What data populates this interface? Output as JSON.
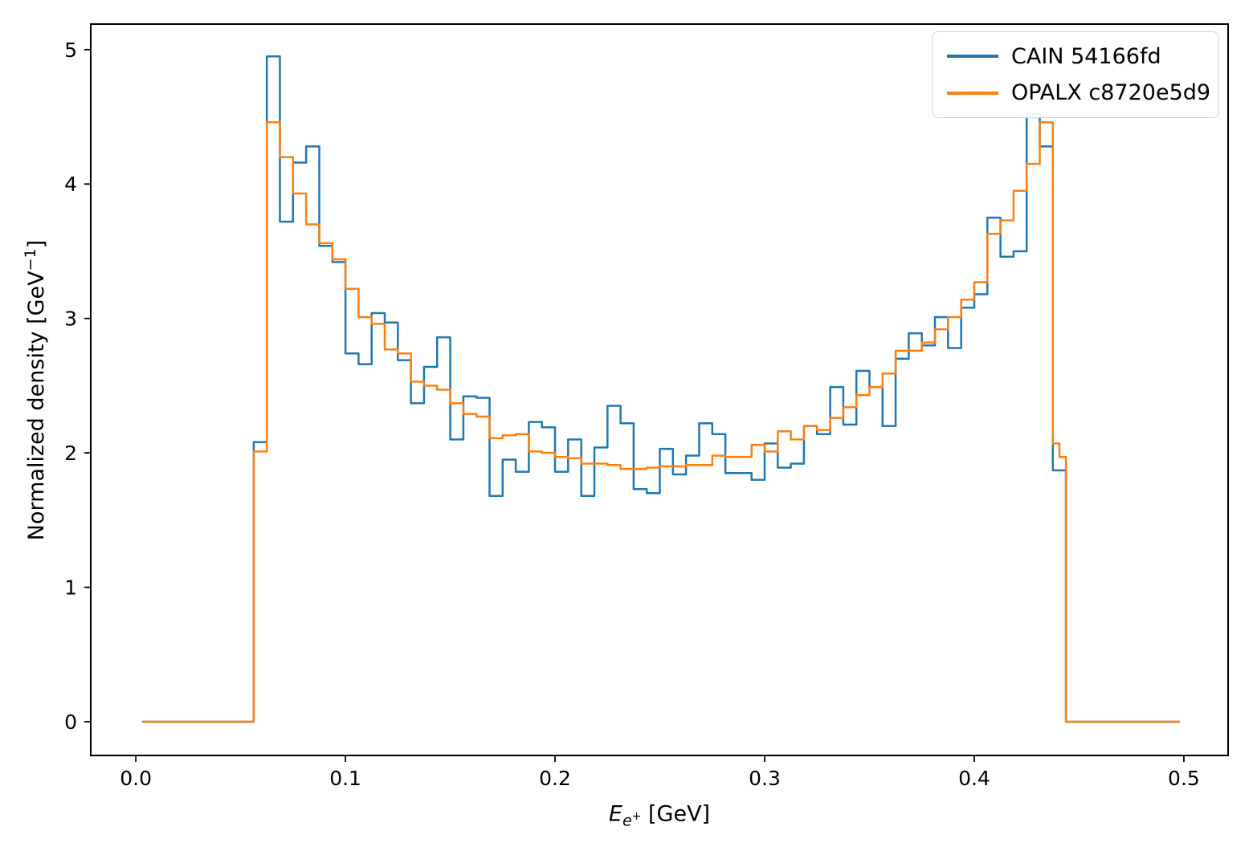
{
  "chart_data": {
    "type": "step-histogram",
    "title": "",
    "xlabel": {
      "var": "E",
      "sub": "e",
      "sub_sup": "+",
      "unit": " [GeV]"
    },
    "ylabel": {
      "main": "Normalized density [GeV",
      "sup": "−1",
      "end": "]"
    },
    "xlim": [
      -0.0215,
      0.5211
    ],
    "ylim": [
      -0.251,
      5.19
    ],
    "x_ticks": [
      0.0,
      0.1,
      0.2,
      0.3,
      0.4,
      0.5
    ],
    "x_tick_labels": [
      "0.0",
      "0.1",
      "0.2",
      "0.3",
      "0.4",
      "0.5"
    ],
    "y_ticks": [
      0,
      1,
      2,
      3,
      4,
      5
    ],
    "y_tick_labels": [
      "0",
      "1",
      "2",
      "3",
      "4",
      "5"
    ],
    "grid": false,
    "legend_position": "upper right",
    "series": [
      {
        "name": "CAIN 54166fd",
        "color": "#1f77b4",
        "baseline_start": 0.003,
        "baseline_end": 0.498,
        "bin_edges": [
          0.05625,
          0.0625,
          0.06875,
          0.075,
          0.08125,
          0.0875,
          0.09375,
          0.1,
          0.10625,
          0.1125,
          0.11875,
          0.125,
          0.13125,
          0.1375,
          0.14375,
          0.15,
          0.15625,
          0.1625,
          0.16875,
          0.175,
          0.18125,
          0.1875,
          0.19375,
          0.2,
          0.20625,
          0.2125,
          0.21875,
          0.225,
          0.23125,
          0.2375,
          0.24375,
          0.25,
          0.25625,
          0.2625,
          0.26875,
          0.275,
          0.28125,
          0.2875,
          0.29375,
          0.3,
          0.30625,
          0.3125,
          0.31875,
          0.325,
          0.33125,
          0.3375,
          0.34375,
          0.35,
          0.35625,
          0.3625,
          0.36875,
          0.375,
          0.38125,
          0.3875,
          0.39375,
          0.4,
          0.40625,
          0.4125,
          0.41875,
          0.425,
          0.43125,
          0.4375,
          0.44375
        ],
        "values": [
          2.08,
          4.95,
          3.72,
          4.16,
          4.28,
          3.54,
          3.42,
          2.74,
          2.66,
          3.04,
          2.97,
          2.69,
          2.37,
          2.64,
          2.86,
          2.1,
          2.42,
          2.41,
          1.68,
          1.95,
          1.86,
          2.23,
          2.19,
          1.86,
          2.1,
          1.68,
          2.04,
          2.35,
          2.22,
          1.73,
          1.7,
          2.03,
          1.84,
          1.98,
          2.22,
          2.14,
          1.85,
          1.85,
          1.8,
          2.07,
          1.89,
          1.92,
          2.2,
          2.14,
          2.49,
          2.21,
          2.61,
          2.49,
          2.2,
          2.7,
          2.89,
          2.8,
          3.01,
          2.78,
          3.08,
          3.18,
          3.75,
          3.46,
          3.5,
          4.52,
          4.28,
          1.87
        ]
      },
      {
        "name": "OPALX c8720e5d9",
        "color": "#ff7f0e",
        "baseline_start": 0.003,
        "baseline_end": 0.498,
        "bin_edges": [
          0.05625,
          0.0625,
          0.06875,
          0.075,
          0.08125,
          0.0875,
          0.09375,
          0.1,
          0.10625,
          0.1125,
          0.11875,
          0.125,
          0.13125,
          0.1375,
          0.14375,
          0.15,
          0.15625,
          0.1625,
          0.16875,
          0.175,
          0.18125,
          0.1875,
          0.19375,
          0.2,
          0.20625,
          0.2125,
          0.21875,
          0.225,
          0.23125,
          0.2375,
          0.24375,
          0.25,
          0.25625,
          0.2625,
          0.26875,
          0.275,
          0.28125,
          0.2875,
          0.29375,
          0.3,
          0.30625,
          0.3125,
          0.31875,
          0.325,
          0.33125,
          0.3375,
          0.34375,
          0.35,
          0.35625,
          0.3625,
          0.36875,
          0.375,
          0.38125,
          0.3875,
          0.39375,
          0.4,
          0.40625,
          0.4125,
          0.41875,
          0.425,
          0.43125,
          0.4375,
          0.440625,
          0.44375
        ],
        "values": [
          2.01,
          4.46,
          4.2,
          3.93,
          3.7,
          3.56,
          3.44,
          3.22,
          3.01,
          2.96,
          2.77,
          2.74,
          2.53,
          2.5,
          2.47,
          2.37,
          2.29,
          2.27,
          2.11,
          2.13,
          2.14,
          2.01,
          2.0,
          1.97,
          1.96,
          1.92,
          1.92,
          1.91,
          1.88,
          1.88,
          1.89,
          1.9,
          1.9,
          1.91,
          1.91,
          1.98,
          1.97,
          1.97,
          2.06,
          2.01,
          2.16,
          2.1,
          2.2,
          2.17,
          2.26,
          2.34,
          2.43,
          2.49,
          2.59,
          2.76,
          2.76,
          2.82,
          2.92,
          3.01,
          3.14,
          3.27,
          3.63,
          3.73,
          3.95,
          4.15,
          4.46,
          2.07,
          1.97
        ]
      }
    ]
  }
}
